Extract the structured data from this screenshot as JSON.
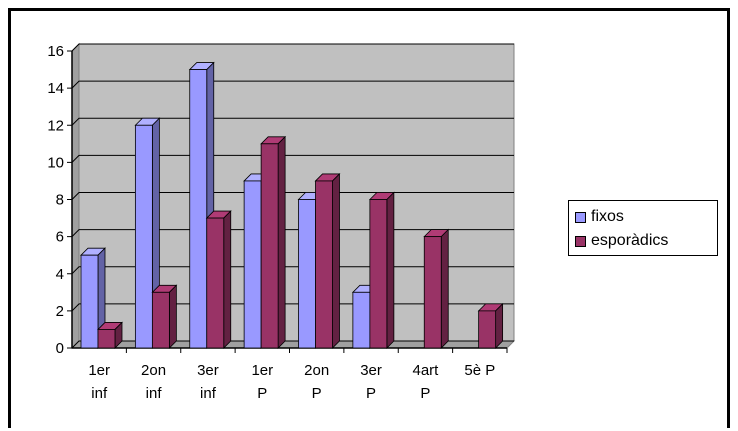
{
  "chart_data": {
    "type": "bar",
    "categories": [
      [
        "1er",
        "inf"
      ],
      [
        "2on",
        "inf"
      ],
      [
        "3er",
        "inf"
      ],
      [
        "1er",
        "P"
      ],
      [
        "2on",
        "P"
      ],
      [
        "3er",
        "P"
      ],
      [
        "4art",
        "P"
      ],
      [
        "5è P",
        ""
      ]
    ],
    "series": [
      {
        "name": "fixos",
        "values": [
          5,
          12,
          15,
          9,
          8,
          3,
          0,
          0
        ],
        "color": "#9999ff"
      },
      {
        "name": "esporàdics",
        "values": [
          1,
          3,
          7,
          11,
          9,
          8,
          6,
          2
        ],
        "color": "#993366"
      }
    ],
    "ylim": [
      0,
      16
    ],
    "yticks": [
      0,
      2,
      4,
      6,
      8,
      10,
      12,
      14,
      16
    ],
    "grid": true,
    "legend": "right",
    "plot_background": "#c0c0c0"
  }
}
